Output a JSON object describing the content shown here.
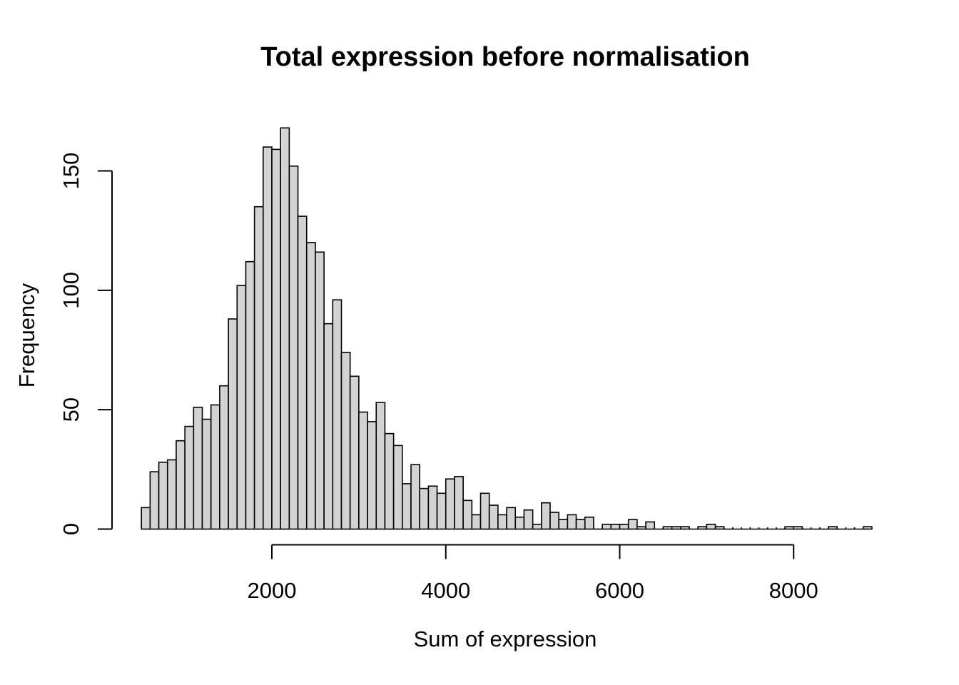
{
  "chart_data": {
    "type": "bar",
    "subtype": "histogram",
    "title": "Total expression before normalisation",
    "xlabel": "Sum of expression",
    "ylabel": "Frequency",
    "bin_start": 500,
    "bin_width": 100,
    "values": [
      9,
      24,
      28,
      29,
      37,
      43,
      51,
      46,
      52,
      60,
      88,
      102,
      112,
      135,
      160,
      159,
      168,
      152,
      131,
      120,
      116,
      86,
      96,
      74,
      64,
      49,
      45,
      53,
      40,
      35,
      19,
      27,
      17,
      18,
      15,
      21,
      22,
      12,
      6,
      15,
      10,
      6,
      9,
      5,
      8,
      2,
      11,
      7,
      4,
      6,
      4,
      5,
      0,
      2,
      2,
      2,
      4,
      1,
      3,
      0,
      1,
      1,
      1,
      0,
      1,
      2,
      1,
      0,
      0,
      0,
      0,
      0,
      0,
      0,
      1,
      1,
      0,
      0,
      0,
      1,
      0,
      0,
      0,
      1
    ],
    "x_ticks": [
      2000,
      4000,
      6000,
      8000
    ],
    "y_ticks": [
      0,
      50,
      100,
      150
    ],
    "xlim": [
      500,
      8900
    ],
    "ylim": [
      0,
      168
    ],
    "grid": false,
    "legend_position": "none",
    "bar_fill": "#d3d3d3",
    "bar_stroke": "#000000",
    "background": "#ffffff"
  }
}
